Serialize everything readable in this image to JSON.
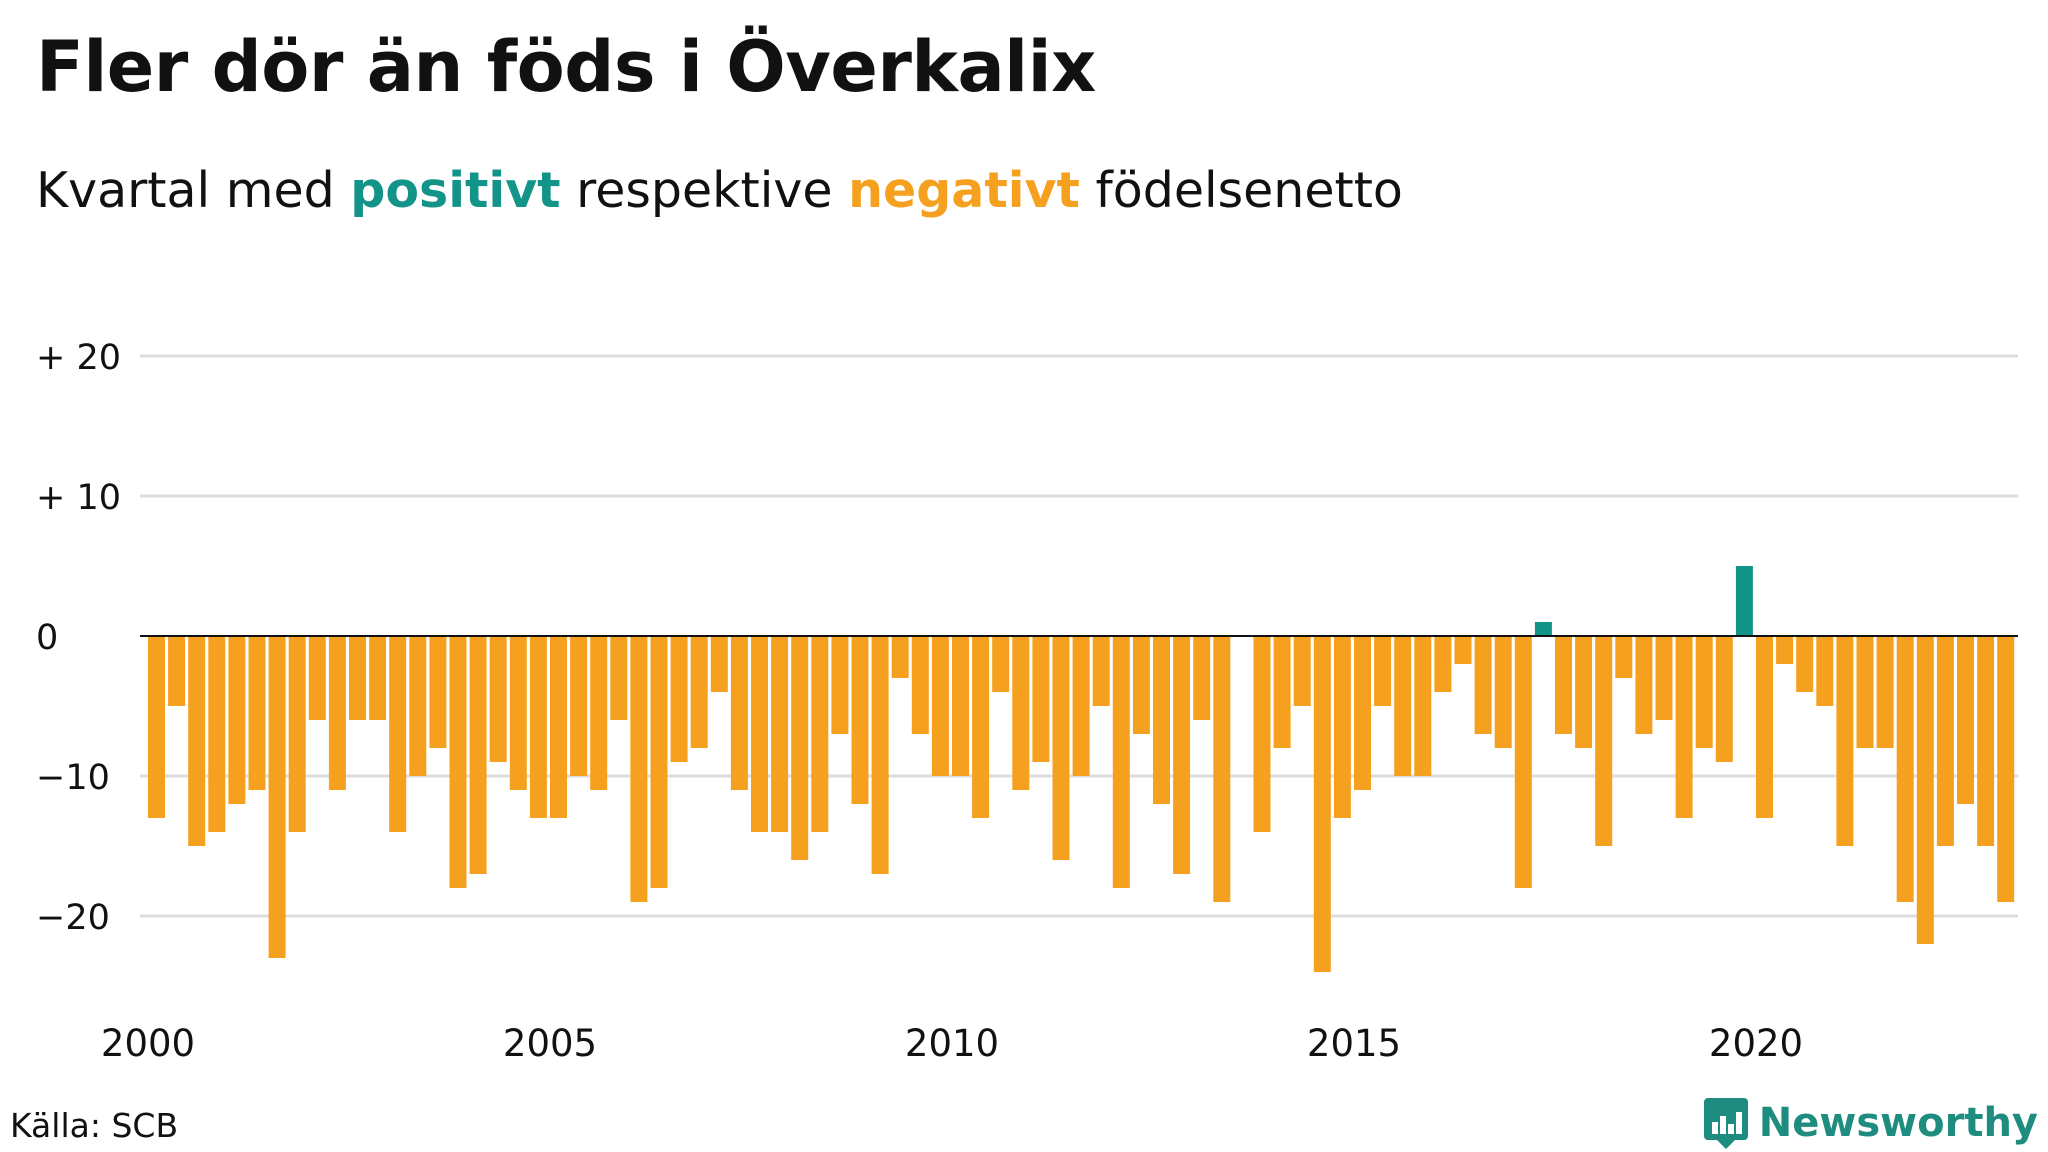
{
  "title": "Fler dör än föds i Överkalix",
  "subtitle": {
    "prefix": "Kvartal med ",
    "positive_word": "positivt",
    "middle": " respektive ",
    "negative_word": "negativt",
    "suffix": " födelsenetto"
  },
  "colors": {
    "positive": "#139488",
    "negative": "#F6A01F",
    "grid": "#DDDDDD",
    "axis": "#111111",
    "logo": "#1E8C7E"
  },
  "source": "Källa: SCB",
  "brand": {
    "name": "Newsworthy",
    "icon": "bar-chart-icon"
  },
  "chart_data": {
    "type": "bar",
    "x_start_year": 2000,
    "quarters_per_year": 4,
    "x_tick_labels": [
      "2000",
      "2005",
      "2010",
      "2015",
      "2020"
    ],
    "y_ticks": [
      {
        "value": 20,
        "label": "+ 20"
      },
      {
        "value": 10,
        "label": "+ 10"
      },
      {
        "value": 0,
        "label": "0"
      },
      {
        "value": -10,
        "label": "−10"
      },
      {
        "value": -20,
        "label": "−20"
      }
    ],
    "ylim": [
      -25,
      20
    ],
    "grid": true,
    "values": [
      -13,
      -5,
      -15,
      -14,
      -12,
      -11,
      -23,
      -14,
      -6,
      -11,
      -6,
      -6,
      -14,
      -10,
      -8,
      -18,
      -17,
      -9,
      -11,
      -13,
      -13,
      -10,
      -11,
      -6,
      -19,
      -18,
      -9,
      -8,
      -4,
      -11,
      -14,
      -14,
      -16,
      -14,
      -7,
      -12,
      -17,
      -3,
      -7,
      -10,
      -10,
      -13,
      -4,
      -11,
      -9,
      -16,
      -10,
      -5,
      -18,
      -7,
      -12,
      -17,
      -6,
      -19,
      0,
      -14,
      -8,
      -5,
      -24,
      -13,
      -11,
      -5,
      -10,
      -10,
      -4,
      -2,
      -7,
      -8,
      -18,
      1,
      -7,
      -8,
      -15,
      -3,
      -7,
      -6,
      -13,
      -8,
      -9,
      5,
      -13,
      -2,
      -4,
      -5,
      -15,
      -8,
      -8,
      -19,
      -22,
      -15,
      -12,
      -15,
      -19
    ]
  }
}
